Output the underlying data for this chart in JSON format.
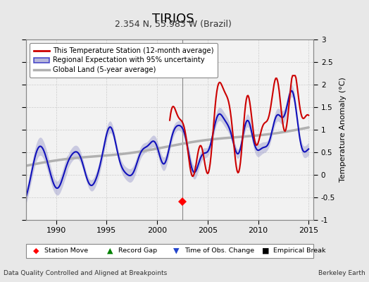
{
  "title": "TIRIOS",
  "subtitle": "2.354 N, 55.983 W (Brazil)",
  "ylabel": "Temperature Anomaly (°C)",
  "xlim": [
    1987.0,
    2015.5
  ],
  "ylim": [
    -1.0,
    3.0
  ],
  "yticks": [
    -1,
    -0.5,
    0,
    0.5,
    1,
    1.5,
    2,
    2.5,
    3
  ],
  "xticks": [
    1990,
    1995,
    2000,
    2005,
    2010,
    2015
  ],
  "footer_left": "Data Quality Controlled and Aligned at Breakpoints",
  "footer_right": "Berkeley Earth",
  "bg_color": "#e8e8e8",
  "plot_bg_color": "#f2f2f2",
  "station_move_x": 2002.5,
  "station_move_y": -0.6,
  "vline_x": 2002.5,
  "red_color": "#cc0000",
  "blue_color": "#1111bb",
  "gray_color": "#b0b0b0",
  "blue_fill_color": "#9999cc"
}
